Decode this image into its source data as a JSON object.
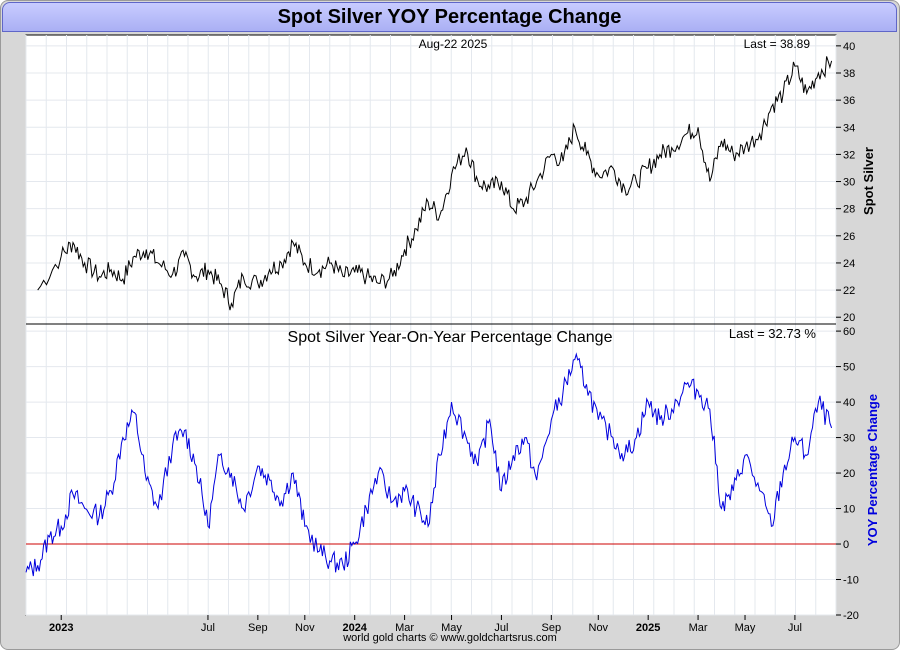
{
  "title": "Spot Silver YOY Percentage Change",
  "footer": "world gold charts © www.goldchartsrus.com",
  "chart_data": [
    {
      "type": "line",
      "date_label": "Aug-22  2025",
      "last_label": "Last = 38.89",
      "ylabel": "Spot Silver",
      "ylim": [
        19.5,
        40.8
      ],
      "yticks": [
        20,
        22,
        24,
        26,
        28,
        30,
        32,
        34,
        36,
        38,
        40
      ],
      "line_color": "#000000",
      "series": [
        {
          "name": "Spot Silver",
          "x": [
            2022.92,
            2023.0,
            2023.04,
            2023.08,
            2023.13,
            2023.17,
            2023.21,
            2023.25,
            2023.29,
            2023.33,
            2023.38,
            2023.42,
            2023.46,
            2023.5,
            2023.54,
            2023.58,
            2023.62,
            2023.67,
            2023.71,
            2023.75,
            2023.79,
            2023.83,
            2023.88,
            2023.92,
            2023.96,
            2024.0,
            2024.04,
            2024.08,
            2024.13,
            2024.17,
            2024.21,
            2024.25,
            2024.29,
            2024.33,
            2024.38,
            2024.42,
            2024.46,
            2024.5,
            2024.54,
            2024.58,
            2024.62,
            2024.67,
            2024.71,
            2024.75,
            2024.79,
            2024.83,
            2024.88,
            2024.92,
            2024.96,
            2025.0,
            2025.04,
            2025.08,
            2025.13,
            2025.17,
            2025.21,
            2025.25,
            2025.29,
            2025.33,
            2025.38,
            2025.42,
            2025.46,
            2025.5,
            2025.54,
            2025.58,
            2025.625
          ],
          "values": [
            22.0,
            24.5,
            25.5,
            24.0,
            23.0,
            23.5,
            22.8,
            24.5,
            25.0,
            24.0,
            23.2,
            24.5,
            23.0,
            23.5,
            22.5,
            21.0,
            23.0,
            22.5,
            23.5,
            24.0,
            25.5,
            24.0,
            23.5,
            24.0,
            23.0,
            23.3,
            23.0,
            22.5,
            23.0,
            25.0,
            26.5,
            28.5,
            27.5,
            30.5,
            32.5,
            30.0,
            29.5,
            30.0,
            28.0,
            28.5,
            30.0,
            32.0,
            31.5,
            34.0,
            32.0,
            30.5,
            31.0,
            29.5,
            30.0,
            31.0,
            32.0,
            32.5,
            33.5,
            34.0,
            30.0,
            33.0,
            32.0,
            32.5,
            33.5,
            35.5,
            36.5,
            38.5,
            36.5,
            38.0,
            38.89
          ]
        }
      ]
    },
    {
      "type": "line",
      "title": "Spot Silver Year-On-Year Percentage Change",
      "last_label": "Last = 32.73 %",
      "ylabel": "YOY Percentage Change",
      "ylim": [
        -20,
        62
      ],
      "yticks": [
        -20,
        -10,
        0,
        10,
        20,
        30,
        40,
        50,
        60
      ],
      "zero_line": 0,
      "line_color": "#0000dd",
      "zero_color": "#cc0000",
      "x_tick_labels": [
        "2023",
        "Jul",
        "Sep",
        "Nov",
        "2024",
        "Mar",
        "May",
        "Jul",
        "Sep",
        "Nov",
        "2025",
        "Mar",
        "May",
        "Jul"
      ],
      "x_tick_values": [
        2023.0,
        2023.5,
        2023.67,
        2023.83,
        2024.0,
        2024.17,
        2024.33,
        2024.5,
        2024.67,
        2024.83,
        2025.0,
        2025.17,
        2025.33,
        2025.5
      ],
      "bold_ticks": [
        "2023",
        "2024",
        "2025"
      ],
      "xlim": [
        2022.88,
        2025.64
      ],
      "series": [
        {
          "name": "YOY %",
          "x": [
            2022.88,
            2022.92,
            2022.96,
            2023.0,
            2023.04,
            2023.08,
            2023.13,
            2023.17,
            2023.21,
            2023.25,
            2023.29,
            2023.33,
            2023.38,
            2023.42,
            2023.46,
            2023.5,
            2023.54,
            2023.58,
            2023.62,
            2023.67,
            2023.71,
            2023.75,
            2023.79,
            2023.83,
            2023.88,
            2023.92,
            2023.96,
            2024.0,
            2024.04,
            2024.08,
            2024.13,
            2024.17,
            2024.21,
            2024.25,
            2024.29,
            2024.33,
            2024.38,
            2024.42,
            2024.46,
            2024.5,
            2024.54,
            2024.58,
            2024.62,
            2024.67,
            2024.71,
            2024.75,
            2024.79,
            2024.83,
            2024.88,
            2024.92,
            2024.96,
            2025.0,
            2025.04,
            2025.08,
            2025.13,
            2025.17,
            2025.21,
            2025.25,
            2025.29,
            2025.33,
            2025.38,
            2025.42,
            2025.46,
            2025.5,
            2025.54,
            2025.58,
            2025.625
          ],
          "values": [
            -8,
            -6,
            2,
            5,
            14,
            10,
            8,
            15,
            30,
            37,
            18,
            10,
            28,
            32,
            22,
            5,
            25,
            20,
            10,
            22,
            18,
            12,
            20,
            5,
            -2,
            -5,
            -6,
            0,
            10,
            20,
            12,
            15,
            10,
            5,
            25,
            40,
            30,
            22,
            35,
            15,
            25,
            30,
            18,
            35,
            43,
            52,
            45,
            35,
            30,
            25,
            30,
            40,
            35,
            38,
            45,
            43,
            38,
            10,
            15,
            25,
            15,
            5,
            20,
            30,
            25,
            40,
            32.73
          ]
        }
      ]
    }
  ]
}
